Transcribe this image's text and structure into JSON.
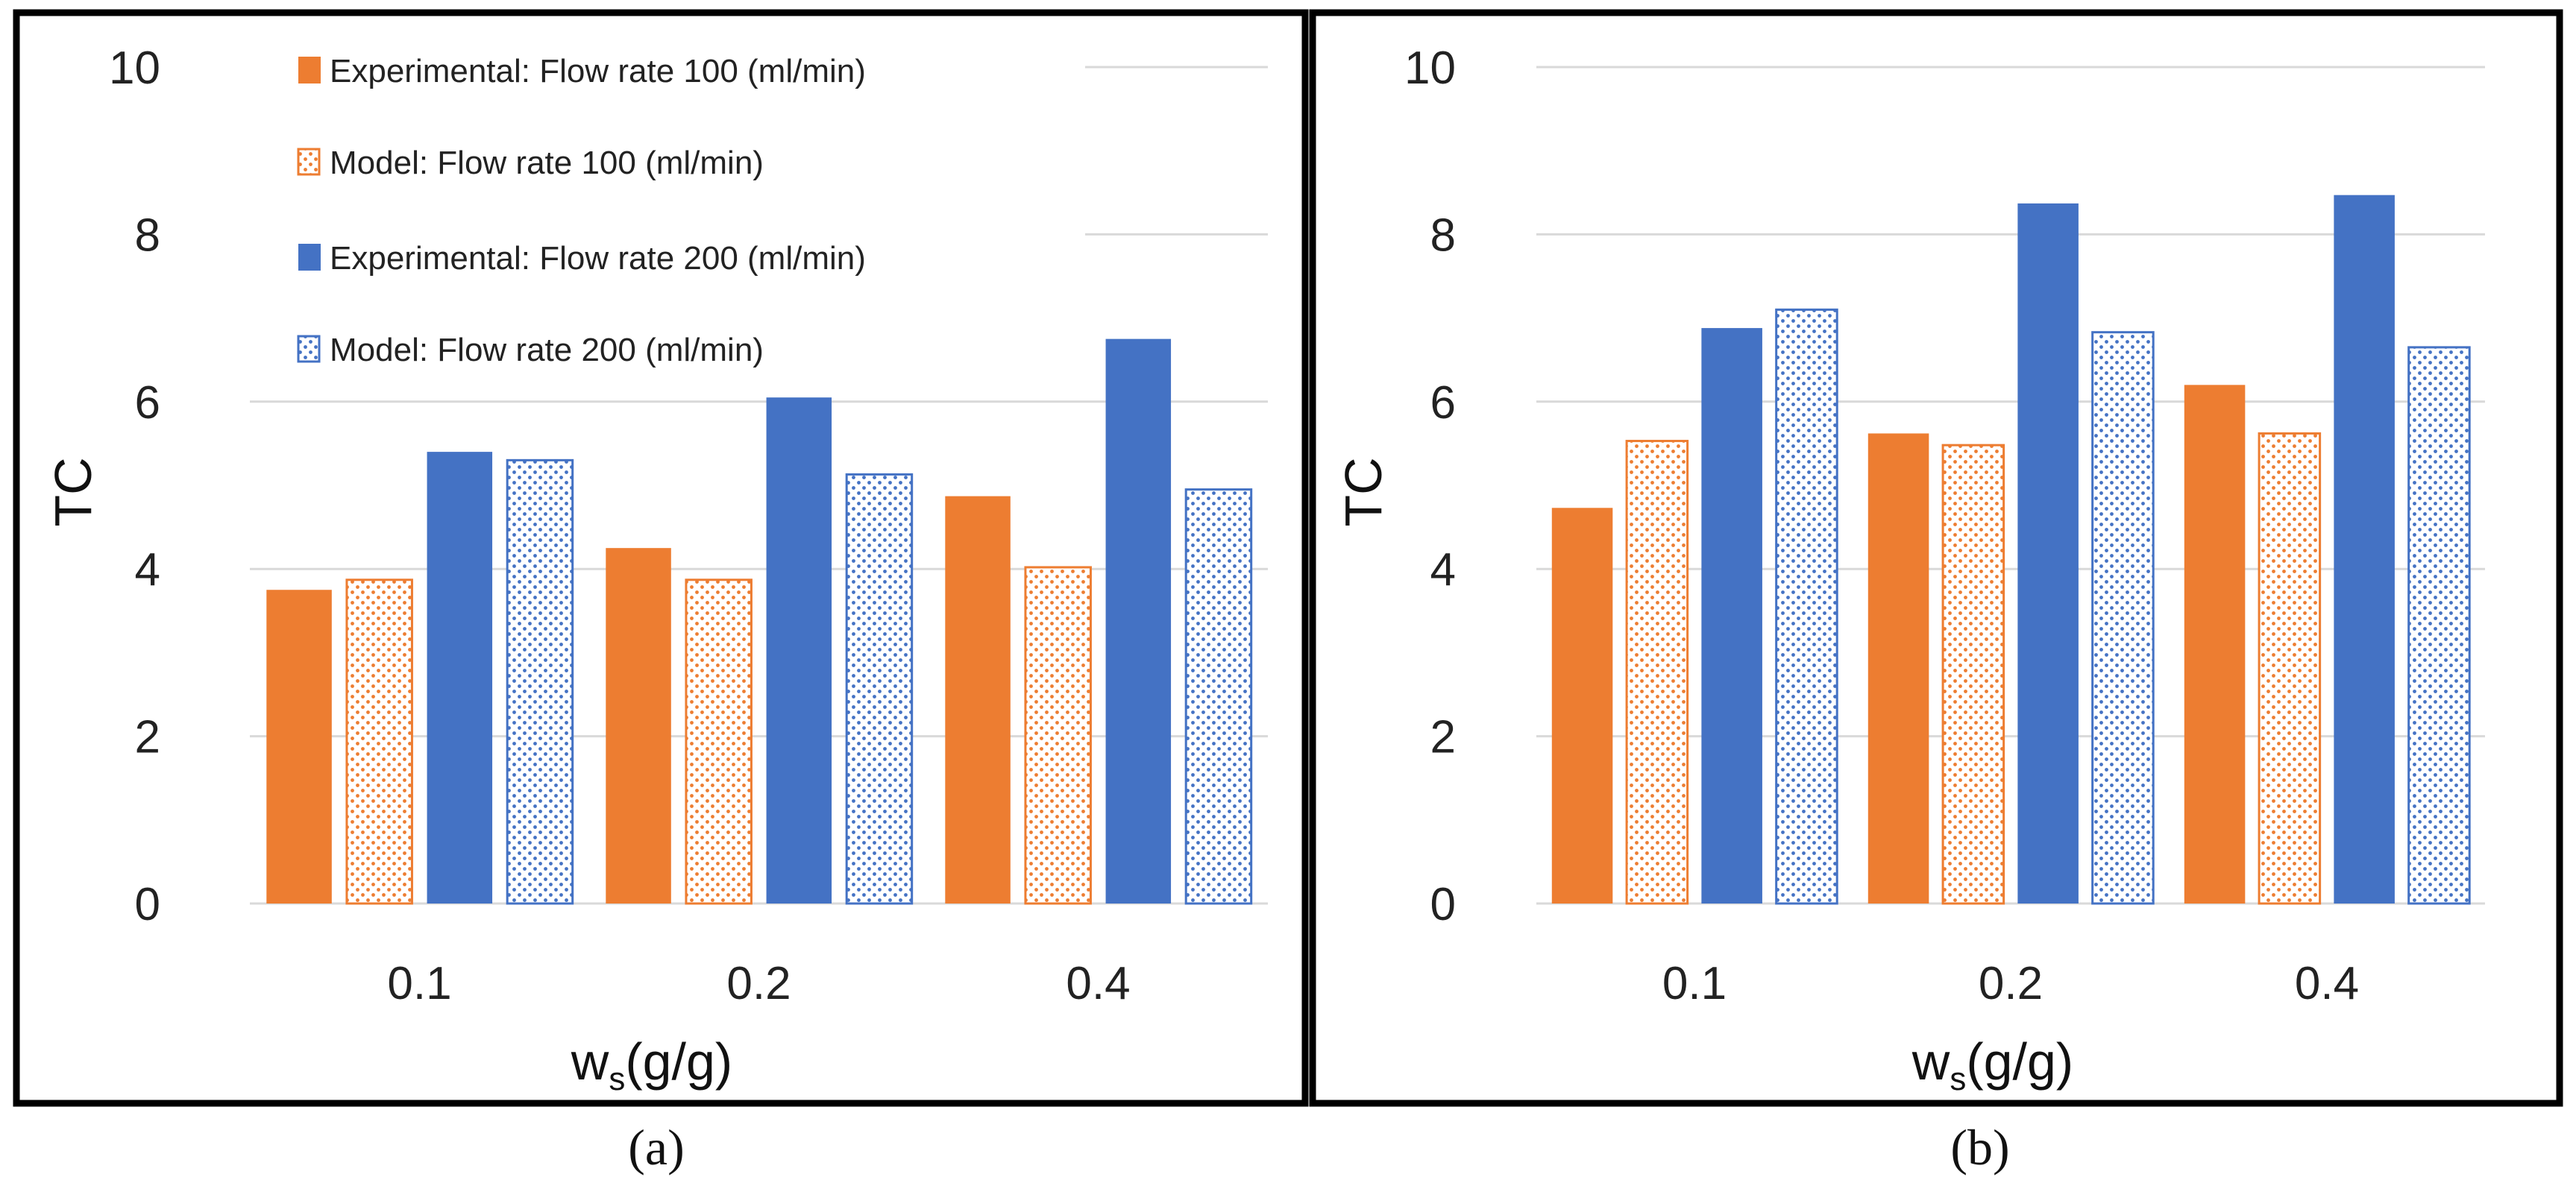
{
  "colors": {
    "orange": "#ED7D31",
    "blue": "#4472C4",
    "grid": "#D9D9D9",
    "frame": "#000000"
  },
  "chart_data": [
    {
      "type": "bar",
      "panel_label": "(a)",
      "xlabel_main": "w",
      "xlabel_sub": "s",
      "xlabel_rest": "(g/g)",
      "ylabel": "TC",
      "ylim": [
        0,
        10
      ],
      "yticks": [
        "0",
        "2",
        "4",
        "6",
        "8",
        "10"
      ],
      "categories": [
        "0.1",
        "0.2",
        "0.4"
      ],
      "legend_position": "top-left",
      "series": [
        {
          "name": "Experimental: Flow rate 100 (ml/min)",
          "color": "orange",
          "pattern": "solid",
          "values": [
            3.75,
            4.25,
            4.87
          ]
        },
        {
          "name": "Model: Flow rate 100 (ml/min)",
          "color": "orange",
          "pattern": "dotted",
          "values": [
            3.87,
            3.87,
            4.02
          ]
        },
        {
          "name": "Experimental: Flow rate 200 (ml/min)",
          "color": "blue",
          "pattern": "solid",
          "values": [
            5.4,
            6.05,
            6.75
          ]
        },
        {
          "name": "Model: Flow rate 200 (ml/min)",
          "color": "blue",
          "pattern": "dotted",
          "values": [
            5.3,
            5.13,
            4.95
          ]
        }
      ]
    },
    {
      "type": "bar",
      "panel_label": "(b)",
      "xlabel_main": "w",
      "xlabel_sub": "s",
      "xlabel_rest": "(g/g)",
      "ylabel": "TC",
      "ylim": [
        0,
        10
      ],
      "yticks": [
        "0",
        "2",
        "4",
        "6",
        "8",
        "10"
      ],
      "categories": [
        "0.1",
        "0.2",
        "0.4"
      ],
      "series": [
        {
          "name": "Experimental: Flow rate 100 (ml/min)",
          "color": "orange",
          "pattern": "solid",
          "values": [
            4.73,
            5.62,
            6.2
          ]
        },
        {
          "name": "Model: Flow rate 100 (ml/min)",
          "color": "orange",
          "pattern": "dotted",
          "values": [
            5.53,
            5.48,
            5.62
          ]
        },
        {
          "name": "Experimental: Flow rate 200 (ml/min)",
          "color": "blue",
          "pattern": "solid",
          "values": [
            6.88,
            8.37,
            8.47
          ]
        },
        {
          "name": "Model: Flow rate 200 (ml/min)",
          "color": "blue",
          "pattern": "dotted",
          "values": [
            7.1,
            6.83,
            6.65
          ]
        }
      ]
    }
  ]
}
